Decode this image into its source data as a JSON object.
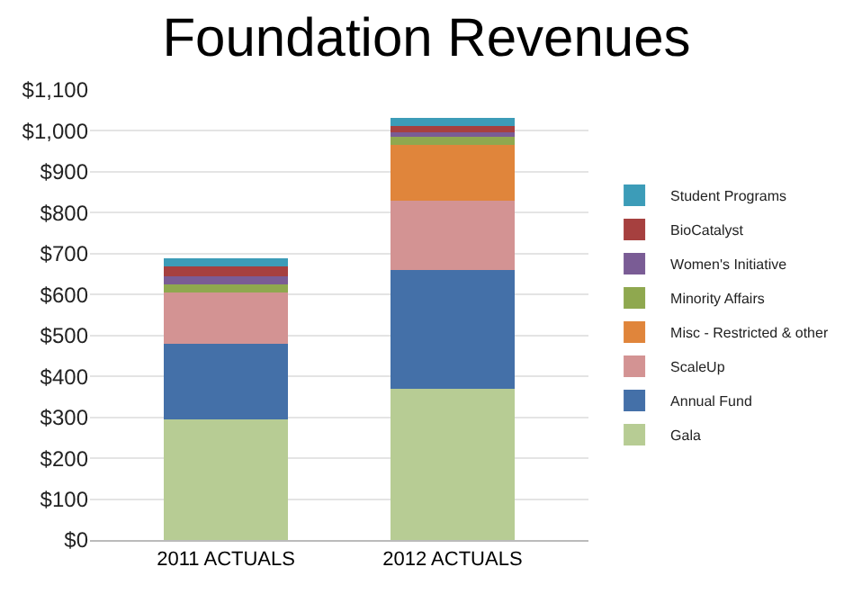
{
  "chart_data": {
    "type": "bar",
    "title": "Foundation Revenues",
    "stacked": true,
    "categories": [
      "2011 ACTUALS",
      "2012 ACTUALS"
    ],
    "series": [
      {
        "name": "Gala",
        "color": "#b7cc94",
        "values": [
          295,
          370
        ]
      },
      {
        "name": "Annual Fund",
        "color": "#4470a8",
        "values": [
          185,
          290
        ]
      },
      {
        "name": "ScaleUp",
        "color": "#d39393",
        "values": [
          125,
          170
        ]
      },
      {
        "name": "Misc - Restricted & other",
        "color": "#e0853b",
        "values": [
          0,
          135
        ]
      },
      {
        "name": "Minority Affairs",
        "color": "#8fa84f",
        "values": [
          20,
          20
        ]
      },
      {
        "name": "Women's Initiative",
        "color": "#7a5c95",
        "values": [
          20,
          12
        ]
      },
      {
        "name": "BioCatalyst",
        "color": "#a6403f",
        "values": [
          23,
          14
        ]
      },
      {
        "name": "Student Programs",
        "color": "#3c9cb8",
        "values": [
          20,
          20
        ]
      }
    ],
    "ylim": [
      0,
      1100
    ],
    "yticks": [
      {
        "value": 0,
        "label": "$0"
      },
      {
        "value": 100,
        "label": "$100"
      },
      {
        "value": 200,
        "label": "$200"
      },
      {
        "value": 300,
        "label": "$300"
      },
      {
        "value": 400,
        "label": "$400"
      },
      {
        "value": 500,
        "label": "$500"
      },
      {
        "value": 600,
        "label": "$600"
      },
      {
        "value": 700,
        "label": "$700"
      },
      {
        "value": 800,
        "label": "$800"
      },
      {
        "value": 900,
        "label": "$900"
      },
      {
        "value": 1000,
        "label": "$1,000"
      },
      {
        "value": 1100,
        "label": "$1,100"
      }
    ],
    "grid": "y",
    "legend": "right"
  }
}
